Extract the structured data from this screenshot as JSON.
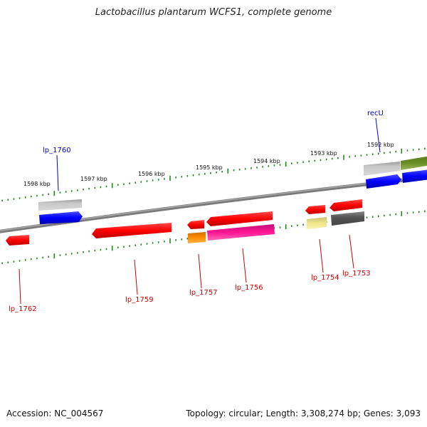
{
  "header": {
    "title": "Lactobacillus plantarum WCFS1, complete genome"
  },
  "footer": {
    "accession": "Accession: NC_004567",
    "summary": "Topology: circular; Length: 3,308,274 bp; Genes: 3,093"
  },
  "scale": {
    "labels": [
      "1598 kbp",
      "1597 kbp",
      "1596 kbp",
      "1595 kbp",
      "1594 kbp",
      "1593 kbp",
      "1592 kbp"
    ]
  },
  "genes": [
    {
      "name": "lp_1762",
      "strand": "minus",
      "color": "#ff0000"
    },
    {
      "name": "lp_1760",
      "strand": "plus",
      "color": "#0000ff"
    },
    {
      "name": "lp_1759",
      "strand": "minus",
      "color": "#ff0000"
    },
    {
      "name": "lp_1757",
      "strand": "minus",
      "color": "#ff0000"
    },
    {
      "name": "lp_1756",
      "strand": "minus",
      "color": "#ff0000"
    },
    {
      "name": "lp_1754",
      "strand": "minus",
      "color": "#ff0000"
    },
    {
      "name": "lp_1753",
      "strand": "minus",
      "color": "#ff0000"
    },
    {
      "name": "recU",
      "strand": "plus",
      "color": "#0000ff"
    }
  ],
  "colors": {
    "backbone": "#808080",
    "tick": "#1a8a1a",
    "plus_label": "#0000cc",
    "minus_label": "#cc0000"
  }
}
